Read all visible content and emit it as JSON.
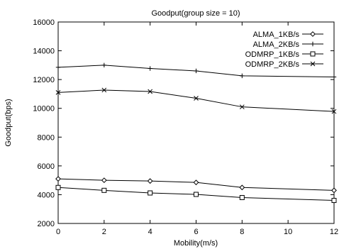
{
  "chart_data": {
    "type": "line",
    "title": "Goodput(group size = 10)",
    "xlabel": "Mobility(m/s)",
    "ylabel": "Goodput(bps)",
    "xlim": [
      0,
      12
    ],
    "ylim": [
      2000,
      16000
    ],
    "xticks": [
      0,
      2,
      4,
      6,
      8,
      10,
      12
    ],
    "yticks": [
      2000,
      4000,
      6000,
      8000,
      10000,
      12000,
      14000,
      16000
    ],
    "grid": false,
    "legend_position": "top-right",
    "series": [
      {
        "name": "ALMA_1KB/s",
        "marker": "diamond",
        "x": [
          0,
          2,
          4,
          6,
          8,
          12
        ],
        "values": [
          5100,
          5000,
          4950,
          4850,
          4500,
          4300
        ]
      },
      {
        "name": "ALMA_2KB/s",
        "marker": "plus",
        "x": [
          0,
          2,
          4,
          6,
          8,
          12
        ],
        "values": [
          12850,
          13000,
          12770,
          12600,
          12260,
          12180
        ]
      },
      {
        "name": "ODMRP_1KB/s",
        "marker": "square",
        "x": [
          0,
          2,
          4,
          6,
          8,
          12
        ],
        "values": [
          4500,
          4300,
          4120,
          4020,
          3800,
          3600
        ]
      },
      {
        "name": "ODMRP_2KB/s",
        "marker": "cross",
        "x": [
          0,
          2,
          4,
          6,
          8,
          12
        ],
        "values": [
          11100,
          11270,
          11170,
          10700,
          10100,
          9780
        ]
      }
    ]
  }
}
